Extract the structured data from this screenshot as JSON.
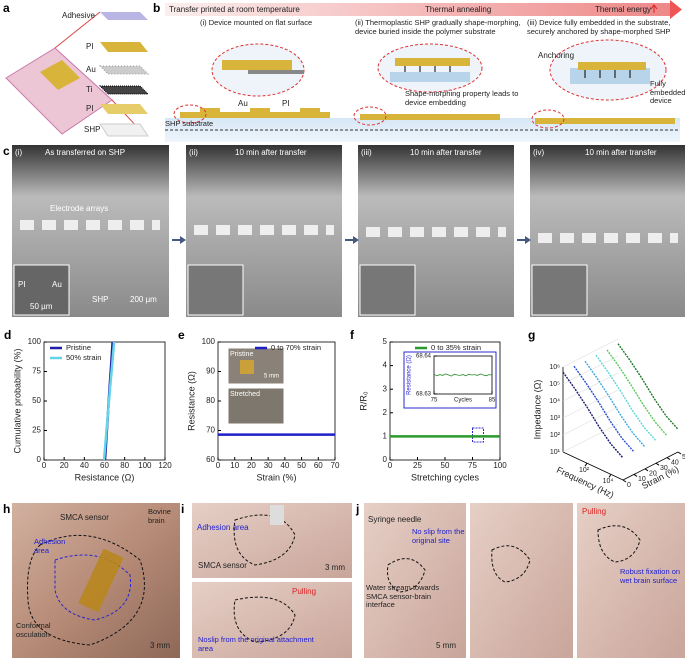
{
  "panels": {
    "a": {
      "letter": "a",
      "labels": [
        "Adhesive",
        "PI",
        "Au",
        "Ti",
        "PI",
        "SHP"
      ]
    },
    "b": {
      "letter": "b",
      "stages": [
        "Transfer printed at room temperature",
        "Thermal annealing",
        "Thermal energy"
      ],
      "captions": [
        "(i) Device mounted on flat surface",
        "(ii) Thermoplastic SHP gradually shape-morphing, device buried inside the polymer substrate",
        "(iii) Device fully embedded in the substrate, securely anchored by shape-morphed SHP"
      ],
      "labels": {
        "au": "Au",
        "pi": "PI",
        "substrate": "SHP substrate",
        "morph": "Shape-morphing property leads to device embedding",
        "anchoring": "Anchoring",
        "embedded": "Fully embedded device"
      }
    },
    "c": {
      "letter": "c",
      "images": [
        {
          "tag": "(i)",
          "caption": "As transferred on SHP",
          "labels": {
            "arrays": "Electrode arrays",
            "pi": "PI",
            "au": "Au",
            "shp": "SHP",
            "scale": "200 µm",
            "inset_scale": "50 µm"
          }
        },
        {
          "tag": "(ii)",
          "caption": "10 min after transfer"
        },
        {
          "tag": "(iii)",
          "caption": "10 min after transfer"
        },
        {
          "tag": "(iv)",
          "caption": "10 min after transfer"
        }
      ]
    },
    "h": {
      "letter": "h",
      "labels": {
        "sensor": "SMCA sensor",
        "brain": "Bovine brain",
        "adhesion": "Adhesion area",
        "osculation": "Conformal osculation",
        "scale": "3 mm"
      }
    },
    "i": {
      "letter": "i",
      "top": {
        "adhesion": "Adhesion area",
        "sensor": "SMCA sensor",
        "scale": "3 mm"
      },
      "bottom": {
        "pulling": "Pulling",
        "noslip": "Noslip from the original attachment area"
      }
    },
    "j": {
      "letter": "j",
      "left": {
        "needle": "Syringe needle",
        "noslip": "No slip from the original site",
        "stream": "Water stream towards SMCA sensor-brain interface",
        "scale": "5 mm"
      },
      "right": {
        "pulling": "Pulling",
        "fixation": "Robust fixation on wet brain surface"
      }
    }
  },
  "chart_data": [
    {
      "type": "line",
      "panel": "d",
      "xlabel": "Resistance (Ω)",
      "ylabel": "Cumulative probability (%)",
      "xlim": [
        0,
        120
      ],
      "xticks": [
        0,
        20,
        40,
        60,
        80,
        100,
        120
      ],
      "ylim": [
        0,
        100
      ],
      "yticks": [
        0,
        25,
        50,
        75,
        100
      ],
      "legend": "upper left",
      "series": [
        {
          "name": "Pristine",
          "color": "#1f1fa8",
          "x": [
            60.5,
            62,
            63.5,
            65,
            66.5,
            68
          ],
          "values": [
            0,
            20,
            40,
            60,
            80,
            100
          ]
        },
        {
          "name": "50% strain",
          "color": "#66d4e8",
          "x": [
            59.5,
            61.5,
            63.5,
            65.5,
            67.5,
            69.5
          ],
          "values": [
            0,
            20,
            40,
            60,
            80,
            100
          ]
        }
      ]
    },
    {
      "type": "line",
      "panel": "e",
      "xlabel": "Strain (%)",
      "ylabel": "Resistance (Ω)",
      "xlim": [
        0,
        70
      ],
      "xticks": [
        0,
        10,
        20,
        30,
        40,
        50,
        60,
        70
      ],
      "ylim": [
        60,
        100
      ],
      "yticks": [
        60,
        70,
        80,
        90,
        100
      ],
      "legend": "upper right",
      "annotations": {
        "pristine": "Pristine",
        "stretched": "Stretched",
        "scale": "5 mm"
      },
      "series": [
        {
          "name": "0 to 70% strain",
          "color": "#1f1fc8",
          "x": [
            0,
            70
          ],
          "values": [
            68.6,
            68.6
          ]
        }
      ]
    },
    {
      "type": "line",
      "panel": "f",
      "xlabel": "Stretching cycles",
      "ylabel": "R/R₀",
      "xlim": [
        0,
        100
      ],
      "xticks": [
        0,
        25,
        50,
        75,
        100
      ],
      "ylim": [
        0,
        5
      ],
      "yticks": [
        0,
        1,
        2,
        3,
        4,
        5
      ],
      "legend": "upper center",
      "series": [
        {
          "name": "0 to 35% strain",
          "color": "#2a9a2a",
          "x": [
            0,
            100
          ],
          "values": [
            1,
            1
          ]
        }
      ],
      "inset": {
        "xlabel": "Cycles",
        "ylabel": "Resistance (Ω)",
        "xlim": [
          75,
          85
        ],
        "xticks": [
          75,
          85
        ],
        "ylim": [
          68.63,
          68.64
        ],
        "yticks": [
          68.63,
          68.64
        ],
        "color": "#2a8a2a",
        "x": [
          75,
          75.5,
          76,
          76.5,
          77,
          77.5,
          78,
          78.5,
          79,
          79.5,
          80,
          80.5,
          81,
          81.5,
          82,
          82.5,
          83,
          83.5,
          84,
          84.5,
          85
        ],
        "values": [
          68.6352,
          68.6348,
          68.6351,
          68.6349,
          68.6353,
          68.635,
          68.6347,
          68.6352,
          68.635,
          68.6349,
          68.6351,
          68.6348,
          68.6352,
          68.635,
          68.6351,
          68.6349,
          68.6353,
          68.635,
          68.6348,
          68.6351,
          68.635
        ]
      }
    },
    {
      "type": "line3d",
      "panel": "g",
      "xlabel": "Frequency (Hz)",
      "ylabel": "Impedance (Ω)",
      "zlabel": "Strain (%)",
      "xscale": "log",
      "yscale": "log",
      "xlim": [
        1,
        100000
      ],
      "xticks": [
        {
          "value": 100,
          "label": "10²"
        },
        {
          "value": 10000,
          "label": "10⁴"
        }
      ],
      "ylim": [
        10,
        1000000
      ],
      "yticks": [
        {
          "value": 10,
          "label": "10¹"
        },
        {
          "value": 100,
          "label": "10²"
        },
        {
          "value": 1000,
          "label": "10³"
        },
        {
          "value": 10000,
          "label": "10⁴"
        },
        {
          "value": 100000,
          "label": "10⁵"
        },
        {
          "value": 1000000,
          "label": "10⁶"
        }
      ],
      "zlim": [
        0,
        50
      ],
      "zticks": [
        0,
        10,
        20,
        30,
        40,
        50
      ],
      "x": [
        1,
        10,
        100,
        1000,
        10000,
        100000
      ],
      "series": [
        {
          "z": 0,
          "color": "#1a1a70",
          "values": [
            500000,
            110000,
            20000,
            3000,
            600,
            200
          ]
        },
        {
          "z": 10,
          "color": "#2a4fd0",
          "values": [
            520000,
            115000,
            21000,
            3100,
            620,
            210
          ]
        },
        {
          "z": 20,
          "color": "#3fa8e0",
          "values": [
            480000,
            105000,
            19000,
            2900,
            580,
            190
          ]
        },
        {
          "z": 30,
          "color": "#5fd6d6",
          "values": [
            510000,
            112000,
            20500,
            3050,
            610,
            205
          ]
        },
        {
          "z": 40,
          "color": "#5cc85c",
          "values": [
            490000,
            108000,
            19500,
            2950,
            590,
            195
          ]
        },
        {
          "z": 50,
          "color": "#1f7a2a",
          "values": [
            530000,
            118000,
            21500,
            3150,
            630,
            215
          ]
        }
      ]
    }
  ]
}
